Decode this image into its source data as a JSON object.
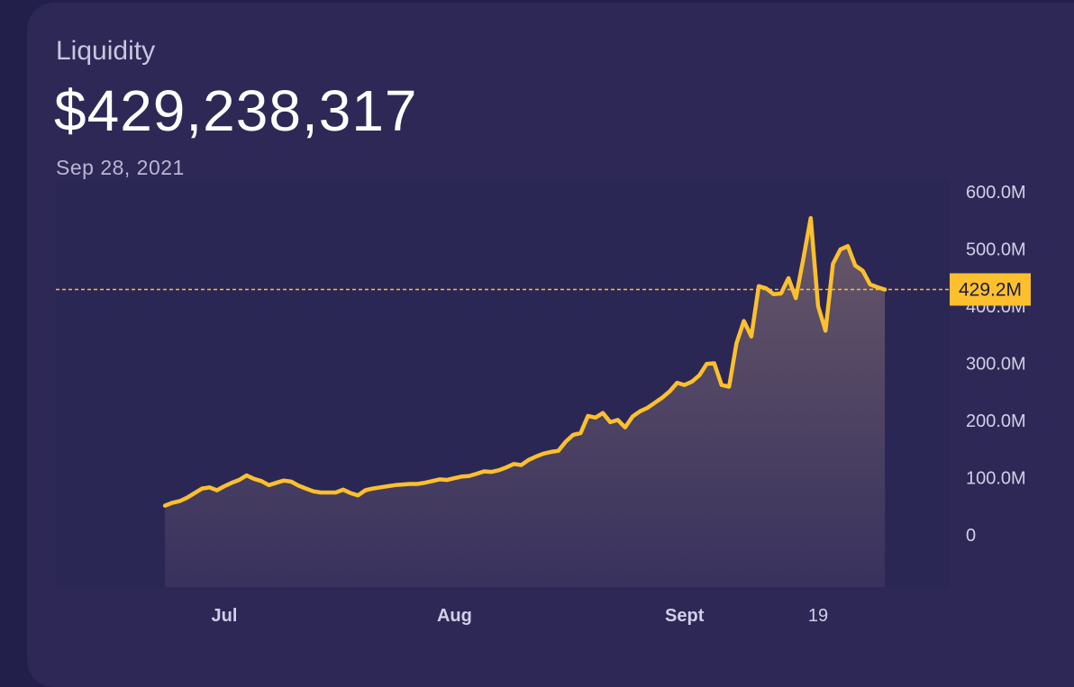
{
  "header": {
    "label": "Liquidity",
    "value": "$429,238,317",
    "date": "Sep 28, 2021"
  },
  "colors": {
    "line": "#fcc02e",
    "card": "#2d2856",
    "background": "#231f4b"
  },
  "chart_data": {
    "type": "area",
    "title": "",
    "xlabel": "",
    "ylabel": "",
    "ylim": [
      0,
      600000000
    ],
    "y_ticks": [
      {
        "value": 0,
        "label": "0"
      },
      {
        "value": 100000000,
        "label": "100.0M"
      },
      {
        "value": 200000000,
        "label": "200.0M"
      },
      {
        "value": 300000000,
        "label": "300.0M"
      },
      {
        "value": 400000000,
        "label": "400.0M"
      },
      {
        "value": 500000000,
        "label": "500.0M"
      },
      {
        "value": 600000000,
        "label": "600.0M"
      }
    ],
    "x_ticks": [
      {
        "date": "2021-07-01",
        "label": "Jul"
      },
      {
        "date": "2021-08-01",
        "label": "Aug"
      },
      {
        "date": "2021-09-01",
        "label": "Sept"
      },
      {
        "date": "2021-09-19",
        "label": "19"
      }
    ],
    "current": {
      "value": 429200000,
      "label": "429.2M"
    },
    "series": [
      {
        "x": [
          "2021-06-23",
          "2021-06-24",
          "2021-06-25",
          "2021-06-26",
          "2021-06-27",
          "2021-06-28",
          "2021-06-29",
          "2021-06-30",
          "2021-07-01",
          "2021-07-02",
          "2021-07-03",
          "2021-07-04",
          "2021-07-05",
          "2021-07-06",
          "2021-07-07",
          "2021-07-08",
          "2021-07-09",
          "2021-07-10",
          "2021-07-11",
          "2021-07-12",
          "2021-07-13",
          "2021-07-14",
          "2021-07-15",
          "2021-07-16",
          "2021-07-17",
          "2021-07-18",
          "2021-07-19",
          "2021-07-20",
          "2021-07-21",
          "2021-07-22",
          "2021-07-23",
          "2021-07-24",
          "2021-07-25",
          "2021-07-26",
          "2021-07-27",
          "2021-07-28",
          "2021-07-29",
          "2021-07-30",
          "2021-07-31",
          "2021-08-01",
          "2021-08-02",
          "2021-08-03",
          "2021-08-04",
          "2021-08-05",
          "2021-08-06",
          "2021-08-07",
          "2021-08-08",
          "2021-08-09",
          "2021-08-10",
          "2021-08-11",
          "2021-08-12",
          "2021-08-13",
          "2021-08-14",
          "2021-08-15",
          "2021-08-16",
          "2021-08-17",
          "2021-08-18",
          "2021-08-19",
          "2021-08-20",
          "2021-08-21",
          "2021-08-22",
          "2021-08-23",
          "2021-08-24",
          "2021-08-25",
          "2021-08-26",
          "2021-08-27",
          "2021-08-28",
          "2021-08-29",
          "2021-08-30",
          "2021-08-31",
          "2021-09-01",
          "2021-09-02",
          "2021-09-03",
          "2021-09-04",
          "2021-09-05",
          "2021-09-06",
          "2021-09-07",
          "2021-09-08",
          "2021-09-09",
          "2021-09-10",
          "2021-09-11",
          "2021-09-12",
          "2021-09-13",
          "2021-09-14",
          "2021-09-15",
          "2021-09-16",
          "2021-09-17",
          "2021-09-18",
          "2021-09-19",
          "2021-09-20",
          "2021-09-21",
          "2021-09-22",
          "2021-09-23",
          "2021-09-24",
          "2021-09-25",
          "2021-09-26",
          "2021-09-27",
          "2021-09-28"
        ],
        "values": [
          51000000,
          56000000,
          59000000,
          65000000,
          73000000,
          81000000,
          83000000,
          78000000,
          85000000,
          91000000,
          96000000,
          104000000,
          98000000,
          94000000,
          87000000,
          91000000,
          95000000,
          93000000,
          86000000,
          81000000,
          76000000,
          74000000,
          74000000,
          74000000,
          79000000,
          73000000,
          69000000,
          78000000,
          81000000,
          83000000,
          85000000,
          87000000,
          88000000,
          89000000,
          89000000,
          91000000,
          94000000,
          97000000,
          96000000,
          99000000,
          102000000,
          103000000,
          107000000,
          111000000,
          110000000,
          113000000,
          118000000,
          124000000,
          122000000,
          131000000,
          137000000,
          142000000,
          145000000,
          147000000,
          163000000,
          175000000,
          178000000,
          208000000,
          205000000,
          213000000,
          197000000,
          201000000,
          188000000,
          207000000,
          216000000,
          222000000,
          231000000,
          240000000,
          251000000,
          266000000,
          262000000,
          268000000,
          279000000,
          299000000,
          300000000,
          262000000,
          259000000,
          335000000,
          374000000,
          347000000,
          435000000,
          431000000,
          421000000,
          422000000,
          449000000,
          414000000,
          482000000,
          554000000,
          400000000,
          357000000,
          474000000,
          499000000,
          505000000,
          471000000,
          462000000,
          438000000,
          433000000,
          429000000
        ]
      }
    ]
  }
}
